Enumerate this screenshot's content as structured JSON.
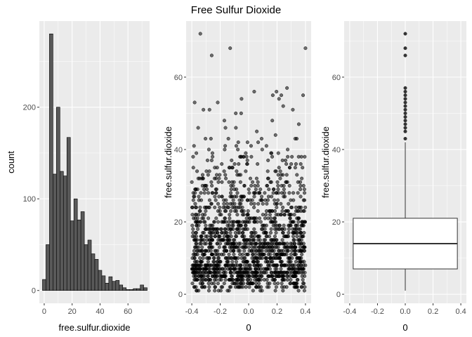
{
  "figure": {
    "title": "Free Sulfur Dioxide",
    "panel_background": "#ebebeb",
    "grid_major": "#ffffff"
  },
  "chart_data": [
    {
      "type": "histogram",
      "xlabel": "free.sulfur.dioxide",
      "ylabel": "count",
      "xlim": [
        -3.5,
        75.5
      ],
      "ylim": [
        -14,
        294
      ],
      "xticks": [
        0,
        20,
        40,
        60
      ],
      "yticks": [
        0,
        100,
        200
      ],
      "bar_fill": "#595959",
      "bar_stroke": "#000000",
      "bin_width": 2.5,
      "bins": [
        {
          "x0": -1.25,
          "count": 12
        },
        {
          "x0": 1.25,
          "count": 50
        },
        {
          "x0": 3.75,
          "count": 280
        },
        {
          "x0": 6.25,
          "count": 127
        },
        {
          "x0": 8.75,
          "count": 200
        },
        {
          "x0": 11.25,
          "count": 130
        },
        {
          "x0": 13.75,
          "count": 125
        },
        {
          "x0": 16.25,
          "count": 167
        },
        {
          "x0": 18.75,
          "count": 76
        },
        {
          "x0": 21.25,
          "count": 100
        },
        {
          "x0": 23.75,
          "count": 77
        },
        {
          "x0": 26.25,
          "count": 86
        },
        {
          "x0": 28.75,
          "count": 50
        },
        {
          "x0": 31.25,
          "count": 55
        },
        {
          "x0": 33.75,
          "count": 40
        },
        {
          "x0": 36.25,
          "count": 34
        },
        {
          "x0": 38.75,
          "count": 22
        },
        {
          "x0": 41.25,
          "count": 16
        },
        {
          "x0": 43.75,
          "count": 8
        },
        {
          "x0": 46.25,
          "count": 15
        },
        {
          "x0": 48.75,
          "count": 10
        },
        {
          "x0": 51.25,
          "count": 11
        },
        {
          "x0": 53.75,
          "count": 6
        },
        {
          "x0": 56.25,
          "count": 3
        },
        {
          "x0": 58.75,
          "count": 1
        },
        {
          "x0": 61.25,
          "count": 1
        },
        {
          "x0": 63.75,
          "count": 2
        },
        {
          "x0": 66.25,
          "count": 2
        },
        {
          "x0": 68.75,
          "count": 6
        },
        {
          "x0": 71.25,
          "count": 3
        }
      ]
    },
    {
      "type": "scatter",
      "xlabel": "0",
      "ylabel": "free.sulfur.dioxide",
      "xlim": [
        -0.44,
        0.44
      ],
      "ylim": [
        -2.5,
        75.5
      ],
      "xticks": [
        -0.4,
        -0.2,
        0.0,
        0.2,
        0.4
      ],
      "xtick_labels": [
        "-0.4",
        "-0.2",
        "0.0",
        "0.2",
        "0.4"
      ],
      "yticks": [
        0,
        20,
        40,
        60
      ],
      "point_fill": "#000000",
      "point_alpha": 0.55,
      "n_points": 1599,
      "jitter_width": 0.4,
      "y_distribution": [
        {
          "lo": 1,
          "hi": 5,
          "n": 200
        },
        {
          "lo": 5,
          "hi": 8,
          "n": 300
        },
        {
          "lo": 8,
          "hi": 11,
          "n": 190
        },
        {
          "lo": 11,
          "hi": 14,
          "n": 200
        },
        {
          "lo": 14,
          "hi": 17,
          "n": 170
        },
        {
          "lo": 17,
          "hi": 20,
          "n": 145
        },
        {
          "lo": 20,
          "hi": 23,
          "n": 100
        },
        {
          "lo": 23,
          "hi": 26,
          "n": 80
        },
        {
          "lo": 26,
          "hi": 29,
          "n": 75
        },
        {
          "lo": 29,
          "hi": 32,
          "n": 55
        },
        {
          "lo": 32,
          "hi": 35,
          "n": 40
        },
        {
          "lo": 35,
          "hi": 38,
          "n": 30
        },
        {
          "lo": 38,
          "hi": 41,
          "n": 20
        },
        {
          "lo": 41,
          "hi": 44,
          "n": 12
        },
        {
          "lo": 44,
          "hi": 47,
          "n": 5
        },
        {
          "lo": 47,
          "hi": 50,
          "n": 4
        },
        {
          "lo": 50,
          "hi": 53,
          "n": 4
        },
        {
          "lo": 53,
          "hi": 57,
          "n": 5
        }
      ],
      "outliers": [
        {
          "x": -0.34,
          "y": 72
        },
        {
          "x": -0.26,
          "y": 66
        },
        {
          "x": -0.13,
          "y": 68
        },
        {
          "x": 0.4,
          "y": 68
        },
        {
          "x": 0.27,
          "y": 57
        },
        {
          "x": -0.38,
          "y": 53
        },
        {
          "x": 0.17,
          "y": 55
        },
        {
          "x": -0.05,
          "y": 54
        },
        {
          "x": 0.23,
          "y": 55
        }
      ]
    },
    {
      "type": "boxplot",
      "xlabel": "0",
      "ylabel": "free.sulfur.dioxide",
      "xlim": [
        -0.44,
        0.44
      ],
      "ylim": [
        -2.5,
        75.5
      ],
      "xticks": [
        -0.4,
        -0.2,
        0.0,
        0.2,
        0.4
      ],
      "xtick_labels": [
        "-0.4",
        "-0.2",
        "0.0",
        "0.2",
        "0.4"
      ],
      "yticks": [
        0,
        20,
        40,
        60
      ],
      "box_x": [
        -0.375,
        0.375
      ],
      "center": 0,
      "whisker_low": 1,
      "q1": 7,
      "median": 14,
      "q3": 21,
      "whisker_high": 42,
      "outliers": [
        43,
        45,
        46,
        47,
        48,
        49,
        50,
        51,
        52,
        53,
        54,
        55,
        56,
        57,
        66,
        68,
        72
      ],
      "box_fill": "#ffffff",
      "box_stroke": "#333333"
    }
  ]
}
